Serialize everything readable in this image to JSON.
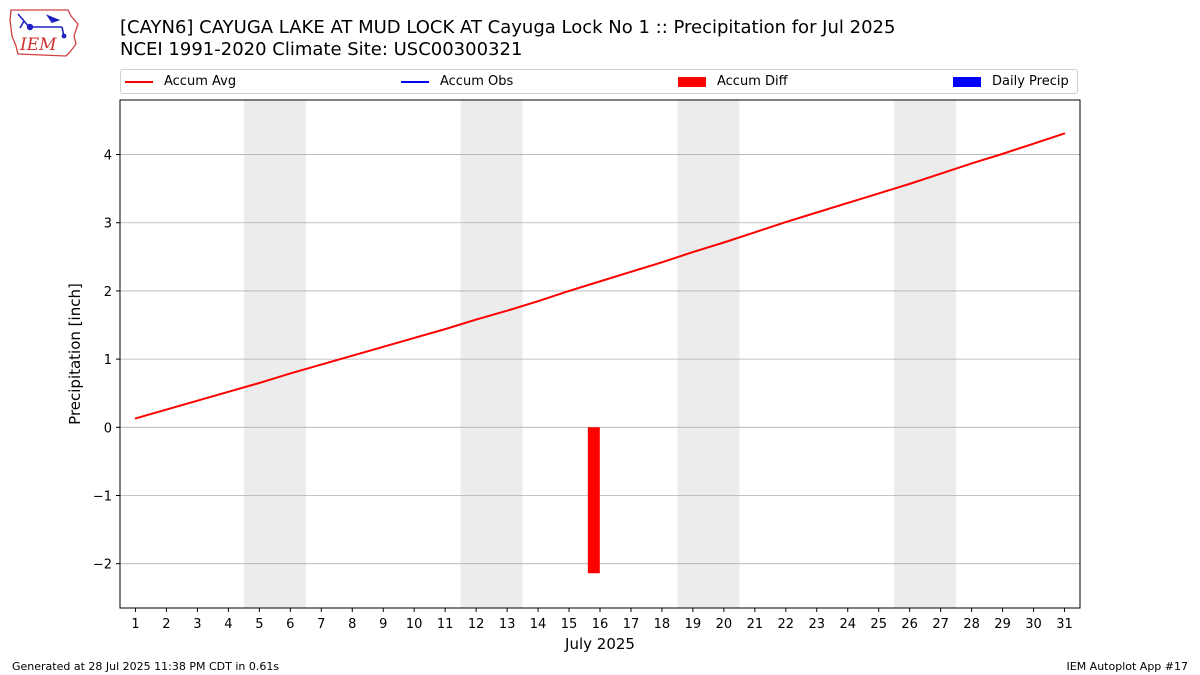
{
  "header": {
    "title_line1": "[CAYN6] CAYUGA LAKE AT MUD LOCK  AT Cayuga Lock No 1 :: Precipitation for Jul 2025",
    "title_line2": "NCEI 1991-2020 Climate Site: USC00300321"
  },
  "logo": {
    "text": "IEM",
    "icon": "iem-iowa-logo-icon"
  },
  "legend": {
    "items": [
      {
        "label": "Accum Avg",
        "color": "#ff0000",
        "kind": "line"
      },
      {
        "label": "Accum Obs",
        "color": "#0000ff",
        "kind": "line"
      },
      {
        "label": "Accum Diff",
        "color": "#ff0000",
        "kind": "box"
      },
      {
        "label": "Daily Precip",
        "color": "#0000ff",
        "kind": "box"
      }
    ]
  },
  "footer": {
    "left": "Generated at 28 Jul 2025 11:38 PM CDT in 0.61s",
    "right": "IEM Autoplot App #17"
  },
  "chart_data": {
    "type": "line",
    "title": "[CAYN6] CAYUGA LAKE AT MUD LOCK  AT Cayuga Lock No 1 :: Precipitation for Jul 2025",
    "subtitle": "NCEI 1991-2020 Climate Site: USC00300321",
    "xlabel": "July 2025",
    "ylabel": "Precipitation [inch]",
    "x": [
      1,
      2,
      3,
      4,
      5,
      6,
      7,
      8,
      9,
      10,
      11,
      12,
      13,
      14,
      15,
      16,
      17,
      18,
      19,
      20,
      21,
      22,
      23,
      24,
      25,
      26,
      27,
      28,
      29,
      30,
      31
    ],
    "xlim": [
      0.5,
      31.5
    ],
    "ylim": [
      -2.65,
      4.8
    ],
    "yticks": [
      -2,
      -1,
      0,
      1,
      2,
      3,
      4
    ],
    "ytick_labels": [
      "−2",
      "−1",
      "0",
      "1",
      "2",
      "3",
      "4"
    ],
    "grid": "horizontal",
    "legend_position": "top",
    "weekend_shading": [
      [
        4.5,
        6.5
      ],
      [
        11.5,
        13.5
      ],
      [
        18.5,
        20.5
      ],
      [
        25.5,
        27.5
      ]
    ],
    "weekend_color": "#ececec",
    "series": [
      {
        "name": "Accum Avg",
        "type": "line",
        "color": "#ff0000",
        "values": [
          0.13,
          0.26,
          0.39,
          0.52,
          0.65,
          0.79,
          0.92,
          1.05,
          1.18,
          1.31,
          1.44,
          1.58,
          1.71,
          1.85,
          2.0,
          2.14,
          2.28,
          2.42,
          2.57,
          2.71,
          2.86,
          3.01,
          3.15,
          3.29,
          3.43,
          3.57,
          3.72,
          3.87,
          4.01,
          4.16,
          4.31
        ]
      },
      {
        "name": "Accum Diff",
        "type": "bar",
        "color": "#ff0000",
        "points": [
          {
            "x": 15.8,
            "y": -2.14
          }
        ]
      }
    ]
  }
}
